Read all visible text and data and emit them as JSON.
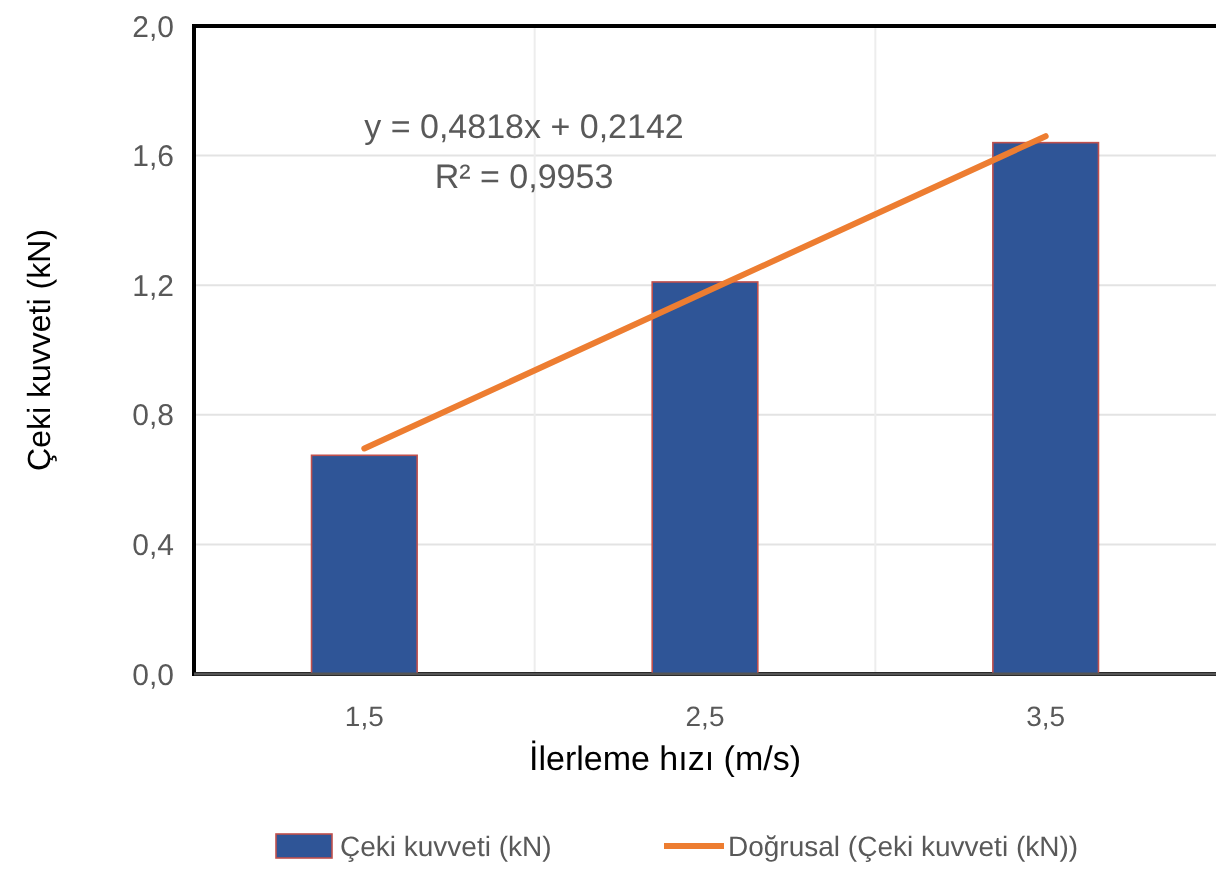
{
  "chart_data": {
    "type": "bar",
    "xlabel": "İlerleme hızı (m/s)",
    "ylabel": "Çeki kuvveti (kN)",
    "categories": [
      "1,5",
      "2,5",
      "3,5"
    ],
    "series": [
      {
        "name": "Çeki kuvveti (kN)",
        "color": "#2f5597",
        "values": [
          0.675,
          1.21,
          1.64
        ]
      },
      {
        "type": "line",
        "name": "Doğrusal (Çeki kuvveti (kN))",
        "color": "#ed7d31",
        "values": [
          0.696,
          1.178,
          1.66
        ]
      }
    ],
    "ylim": [
      0,
      2
    ],
    "yticks": [
      {
        "value": 0,
        "label": "0,0"
      },
      {
        "value": 0.4,
        "label": "0,4"
      },
      {
        "value": 0.8,
        "label": "0,8"
      },
      {
        "value": 1.2,
        "label": "1,2"
      },
      {
        "value": 1.6,
        "label": "1,6"
      },
      {
        "value": 2,
        "label": "2,0"
      }
    ],
    "grid": true,
    "legend": "bottom",
    "marker": "none",
    "line_style": "solid",
    "annotations": [
      "y = 0,4818x + 0,2142",
      "R² = 0,9953"
    ]
  }
}
